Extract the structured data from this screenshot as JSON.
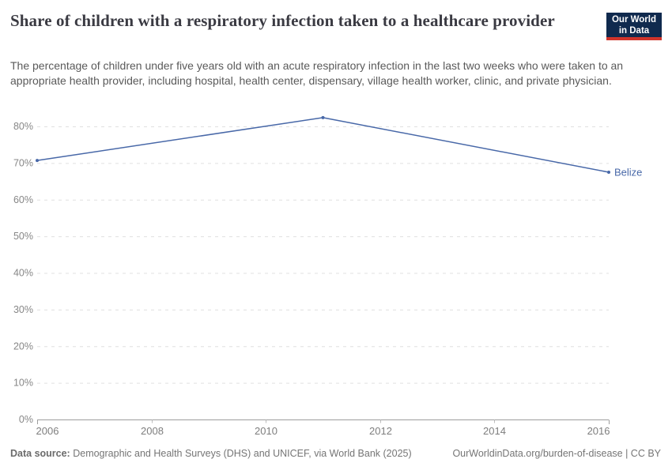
{
  "header": {
    "title": "Share of children with a respiratory infection taken to a healthcare provider",
    "subtitle": "The percentage of children under five years old with an acute respiratory infection in the last two weeks who were taken to an appropriate health provider, including hospital, health center, dispensary, village health worker, clinic, and private physician.",
    "logo": {
      "line1": "Our World",
      "line2": "in Data"
    }
  },
  "footer": {
    "source_label": "Data source:",
    "source_text": "Demographic and Health Surveys (DHS) and UNICEF, via World Bank (2025)",
    "link_text": "OurWorldinData.org/burden-of-disease | CC BY"
  },
  "chart_data": {
    "type": "line",
    "title": "Share of children with a respiratory infection taken to a healthcare provider",
    "series": [
      {
        "name": "Belize",
        "x": [
          2006,
          2011,
          2016
        ],
        "values": [
          70.7,
          82.4,
          67.5
        ],
        "color": "#4868a8"
      }
    ],
    "entity_label": "Belize",
    "x_ticks": [
      2006,
      2008,
      2010,
      2012,
      2014,
      2016
    ],
    "y_ticks": [
      0,
      10,
      20,
      30,
      40,
      50,
      60,
      70,
      80
    ],
    "y_tick_suffix": "%",
    "xlim": [
      2006,
      2016
    ],
    "ylim": [
      0,
      80
    ],
    "grid": true,
    "legend_position": "end-of-line-label",
    "colors": {
      "line": "#4868a8",
      "gridline": "#e0e0e0",
      "axis_line": "#9d9d9d",
      "tick_mark": "#bdbdbd",
      "y_tick_label": "#878787",
      "x_tick_label": "#7e7e7e"
    }
  }
}
